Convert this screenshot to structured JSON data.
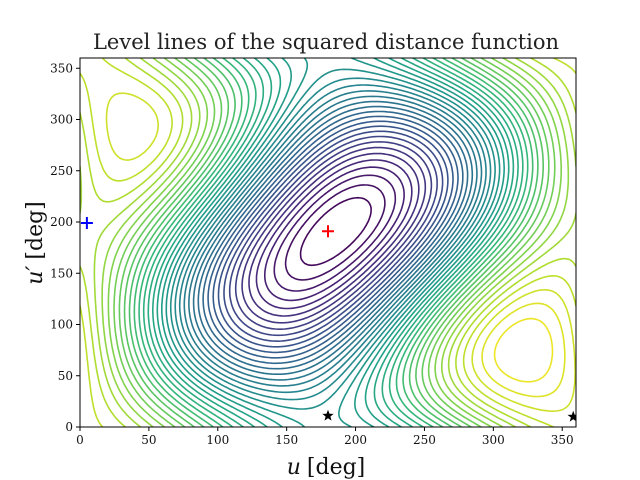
{
  "chart_data": {
    "type": "contour",
    "title": "Level lines of the squared distance function",
    "xlabel": {
      "var": "u",
      "unit": "[deg]"
    },
    "ylabel": {
      "var": "u′",
      "unit": "[deg]"
    },
    "xlim": [
      0,
      360
    ],
    "ylim": [
      0,
      360
    ],
    "xticks": [
      0,
      50,
      100,
      150,
      200,
      250,
      300,
      350
    ],
    "yticks": [
      0,
      50,
      100,
      150,
      200,
      250,
      300,
      350
    ],
    "colormap": "viridis",
    "grid": false,
    "markers": [
      {
        "symbol": "plus",
        "color": "#0000ff",
        "x": 5,
        "y": 199
      },
      {
        "symbol": "plus",
        "color": "#ff0000",
        "x": 180,
        "y": 191
      },
      {
        "symbol": "star",
        "color": "#000000",
        "x": 180,
        "y": 11
      },
      {
        "symbol": "star",
        "color": "#000000",
        "x": 358,
        "y": 10
      }
    ]
  }
}
